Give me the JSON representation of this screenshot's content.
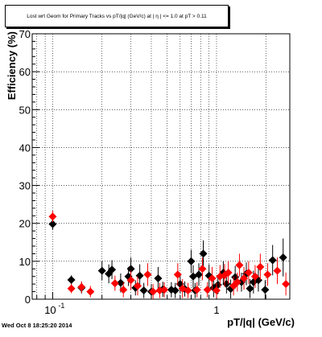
{
  "chart_data": {
    "type": "scatter",
    "title": "Lost wrt Geom for Primary Tracks vs pT/|q| (GeV/c) at |  η | <= 1.0 at pT > 0.11",
    "xlabel": "pT/|q| (GeV/c)",
    "ylabel": "Efficiency (%)",
    "x_scale": "log",
    "xlim": [
      0.075,
      2.8
    ],
    "ylim": [
      0,
      70
    ],
    "y_ticks": [
      0,
      10,
      20,
      30,
      40,
      50,
      60,
      70
    ],
    "x_tick_labels": [
      {
        "value": 0.1,
        "label": "10",
        "exp": "-1"
      },
      {
        "value": 1,
        "label": "1",
        "exp": ""
      }
    ],
    "grid": true,
    "series": [
      {
        "color": "#000000",
        "points": [
          {
            "x": 0.1,
            "y": 19.8,
            "err": 1.5
          },
          {
            "x": 0.13,
            "y": 5.1,
            "err": 1.2
          },
          {
            "x": 0.15,
            "y": 3.0,
            "err": 1.5
          },
          {
            "x": 0.2,
            "y": 7.5,
            "err": 2.5
          },
          {
            "x": 0.22,
            "y": 6.7,
            "err": 2.5
          },
          {
            "x": 0.23,
            "y": 7.8,
            "err": 2.5
          },
          {
            "x": 0.26,
            "y": 4.3,
            "err": 2.5
          },
          {
            "x": 0.29,
            "y": 6.0,
            "err": 2.5
          },
          {
            "x": 0.3,
            "y": 8.0,
            "err": 3.0
          },
          {
            "x": 0.32,
            "y": 3.0,
            "err": 2.0
          },
          {
            "x": 0.34,
            "y": 6.2,
            "err": 3.0
          },
          {
            "x": 0.36,
            "y": 2.3,
            "err": 2.0
          },
          {
            "x": 0.4,
            "y": 2.0,
            "err": 2.0
          },
          {
            "x": 0.44,
            "y": 5.5,
            "err": 3.0
          },
          {
            "x": 0.47,
            "y": 2.6,
            "err": 2.0
          },
          {
            "x": 0.53,
            "y": 2.5,
            "err": 2.0
          },
          {
            "x": 0.56,
            "y": 2.3,
            "err": 2.0
          },
          {
            "x": 0.6,
            "y": 4.0,
            "err": 2.5
          },
          {
            "x": 0.64,
            "y": 2.7,
            "err": 2.0
          },
          {
            "x": 0.7,
            "y": 10.0,
            "err": 3.0
          },
          {
            "x": 0.72,
            "y": 6.0,
            "err": 3.0
          },
          {
            "x": 0.74,
            "y": 2.3,
            "err": 2.0
          },
          {
            "x": 0.78,
            "y": 6.5,
            "err": 3.0
          },
          {
            "x": 0.83,
            "y": 12.0,
            "err": 3.5
          },
          {
            "x": 0.9,
            "y": 6.2,
            "err": 3.0
          },
          {
            "x": 0.96,
            "y": 3.0,
            "err": 2.5
          },
          {
            "x": 1.02,
            "y": 3.8,
            "err": 2.5
          },
          {
            "x": 1.1,
            "y": 7.0,
            "err": 3.0
          },
          {
            "x": 1.15,
            "y": 4.0,
            "err": 2.5
          },
          {
            "x": 1.22,
            "y": 2.7,
            "err": 2.5
          },
          {
            "x": 1.3,
            "y": 5.8,
            "err": 3.0
          },
          {
            "x": 1.42,
            "y": 4.5,
            "err": 2.5
          },
          {
            "x": 1.52,
            "y": 6.7,
            "err": 3.0
          },
          {
            "x": 1.6,
            "y": 2.8,
            "err": 2.5
          },
          {
            "x": 1.68,
            "y": 4.5,
            "err": 3.0
          },
          {
            "x": 1.8,
            "y": 5.0,
            "err": 3.0
          },
          {
            "x": 1.98,
            "y": 2.5,
            "err": 2.5
          },
          {
            "x": 2.2,
            "y": 10.3,
            "err": 4.0
          },
          {
            "x": 2.55,
            "y": 11.0,
            "err": 5.0
          }
        ]
      },
      {
        "color": "#ff0000",
        "points": [
          {
            "x": 0.1,
            "y": 21.8,
            "err": 1.5
          },
          {
            "x": 0.13,
            "y": 2.8,
            "err": 1.2
          },
          {
            "x": 0.15,
            "y": 3.2,
            "err": 1.5
          },
          {
            "x": 0.17,
            "y": 2.0,
            "err": 1.5
          },
          {
            "x": 0.24,
            "y": 4.2,
            "err": 2.0
          },
          {
            "x": 0.27,
            "y": 2.5,
            "err": 2.0
          },
          {
            "x": 0.3,
            "y": 5.0,
            "err": 2.5
          },
          {
            "x": 0.33,
            "y": 3.5,
            "err": 2.5
          },
          {
            "x": 0.38,
            "y": 6.5,
            "err": 3.0
          },
          {
            "x": 0.41,
            "y": 2.0,
            "err": 2.0
          },
          {
            "x": 0.45,
            "y": 2.3,
            "err": 2.0
          },
          {
            "x": 0.48,
            "y": 2.5,
            "err": 2.0
          },
          {
            "x": 0.58,
            "y": 6.5,
            "err": 3.0
          },
          {
            "x": 0.62,
            "y": 2.8,
            "err": 2.5
          },
          {
            "x": 0.67,
            "y": 2.3,
            "err": 2.0
          },
          {
            "x": 0.76,
            "y": 2.5,
            "err": 2.0
          },
          {
            "x": 0.82,
            "y": 8.0,
            "err": 3.0
          },
          {
            "x": 0.88,
            "y": 2.5,
            "err": 2.0
          },
          {
            "x": 0.94,
            "y": 5.5,
            "err": 3.0
          },
          {
            "x": 1.0,
            "y": 2.3,
            "err": 2.0
          },
          {
            "x": 1.05,
            "y": 6.0,
            "err": 3.0
          },
          {
            "x": 1.12,
            "y": 6.3,
            "err": 3.0
          },
          {
            "x": 1.18,
            "y": 7.0,
            "err": 3.0
          },
          {
            "x": 1.27,
            "y": 3.5,
            "err": 2.5
          },
          {
            "x": 1.34,
            "y": 4.5,
            "err": 2.5
          },
          {
            "x": 1.38,
            "y": 9.0,
            "err": 3.0
          },
          {
            "x": 1.47,
            "y": 5.5,
            "err": 3.0
          },
          {
            "x": 1.57,
            "y": 7.0,
            "err": 3.0
          },
          {
            "x": 1.72,
            "y": 6.0,
            "err": 3.0
          },
          {
            "x": 1.85,
            "y": 8.5,
            "err": 3.5
          },
          {
            "x": 2.05,
            "y": 6.5,
            "err": 3.0
          },
          {
            "x": 2.35,
            "y": 7.5,
            "err": 3.5
          },
          {
            "x": 2.65,
            "y": 4.0,
            "err": 3.0
          }
        ]
      }
    ]
  },
  "footer": {
    "timestamp": "Wed Oct  8 18:25:20 2014"
  }
}
